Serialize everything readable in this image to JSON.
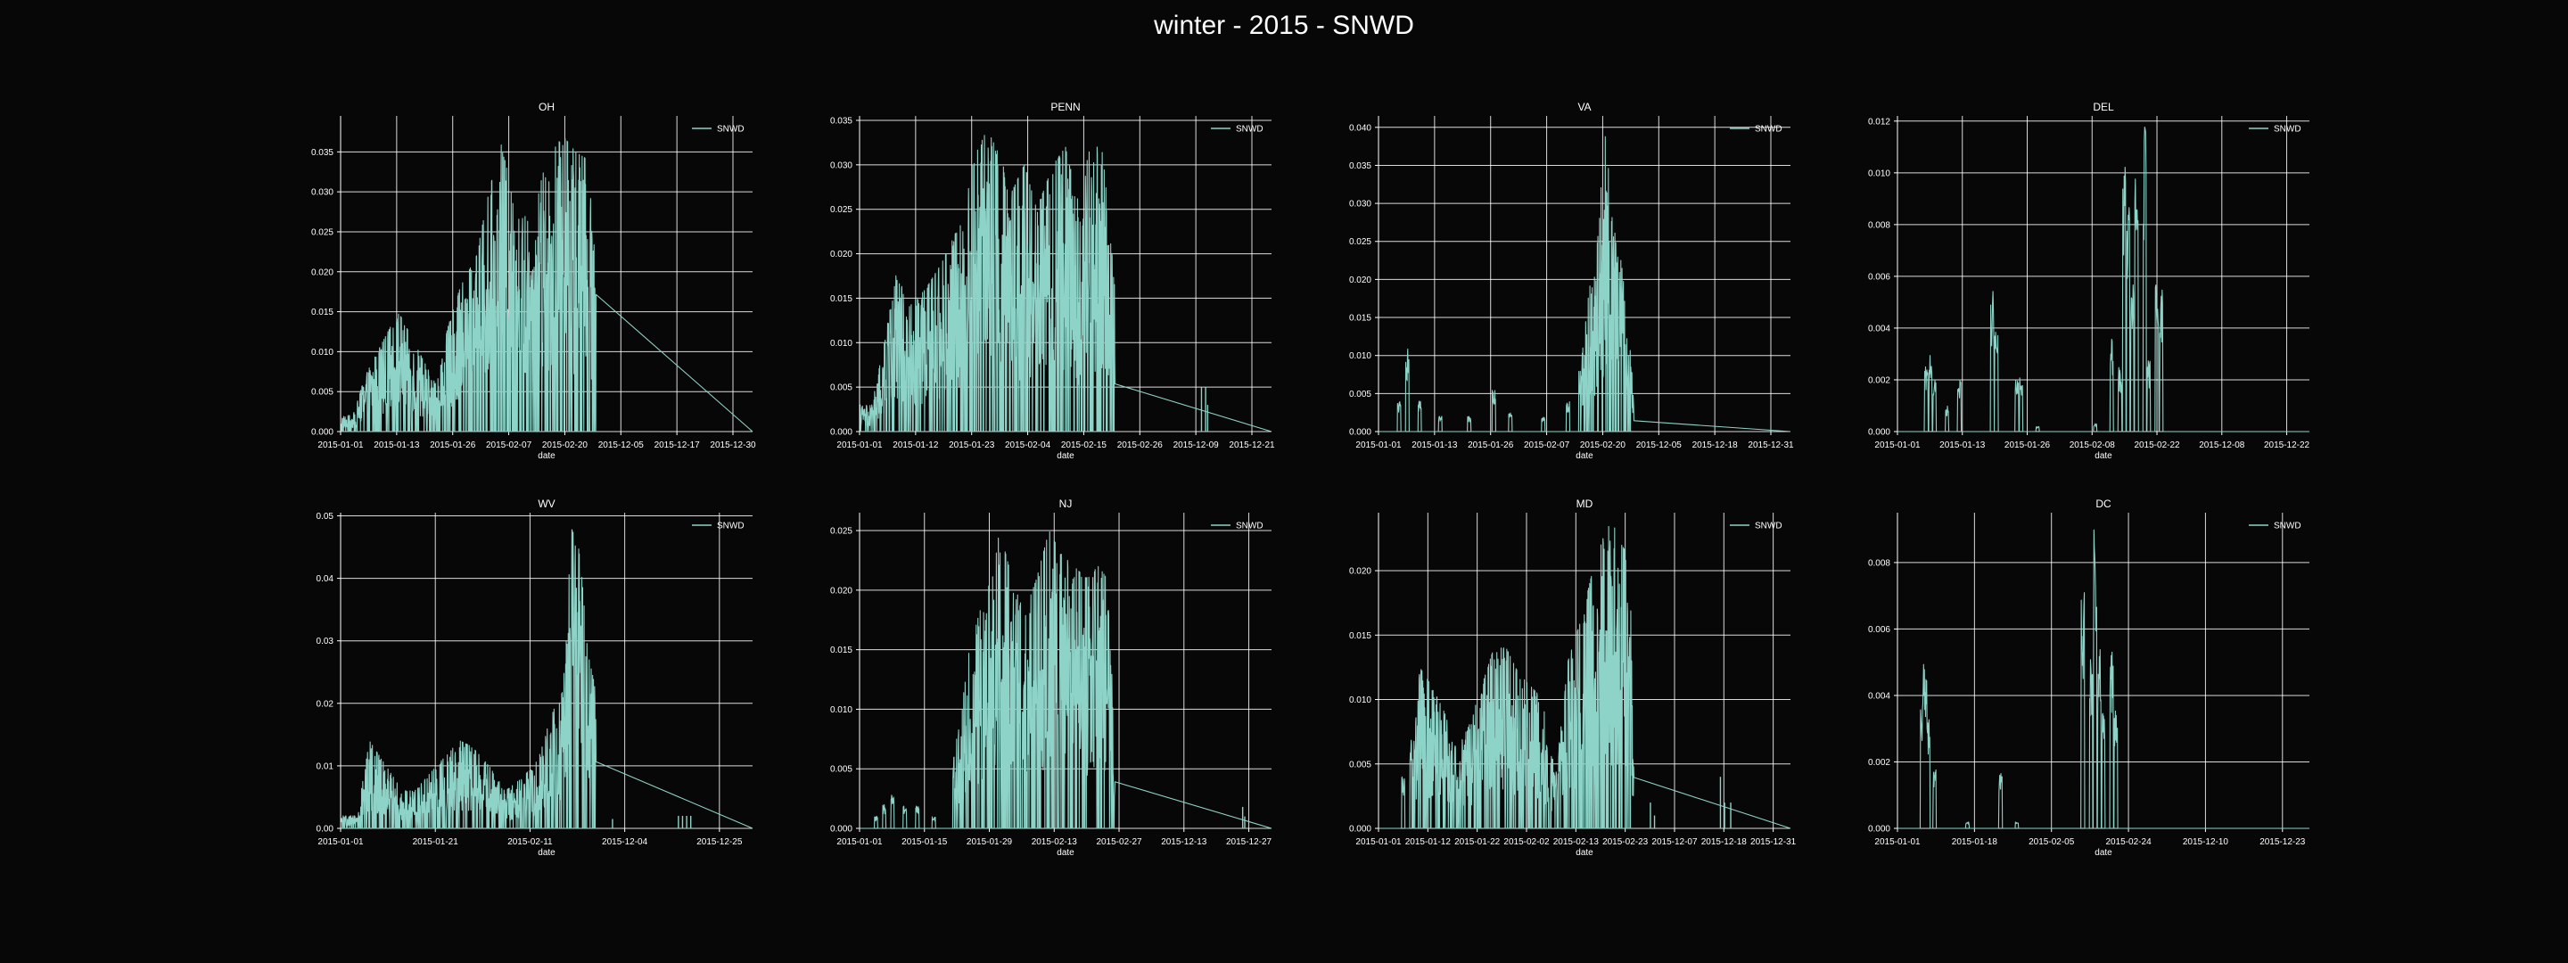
{
  "figure": {
    "title": "winter - 2015 - SNWD",
    "background": "#070707",
    "line_color": "#8dd3c7",
    "grid_color": "#ffffff"
  },
  "chart_data": [
    {
      "type": "line",
      "title": "OH",
      "xlabel": "date",
      "ylabel": "",
      "legend": "SNWD",
      "legend_position": "top-right",
      "grid": true,
      "xticks": [
        "2015-01-01",
        "2015-01-13",
        "2015-01-26",
        "2015-02-07",
        "2015-02-20",
        "2015-12-05",
        "2015-12-17",
        "2015-12-30"
      ],
      "yticks": [
        "0.000",
        "0.005",
        "0.010",
        "0.015",
        "0.020",
        "0.025",
        "0.030",
        "0.035"
      ],
      "ylim": [
        0,
        0.0395
      ],
      "n_points": 900,
      "data_end": 0.62,
      "series": [
        {
          "name": "SNWD",
          "envelope": [
            [
              0.03,
              0.002
            ],
            [
              0.06,
              0.007
            ],
            [
              0.1,
              0.011
            ],
            [
              0.14,
              0.015
            ],
            [
              0.17,
              0.012
            ],
            [
              0.2,
              0.009
            ],
            [
              0.23,
              0.006
            ],
            [
              0.26,
              0.013
            ],
            [
              0.29,
              0.018
            ],
            [
              0.33,
              0.022
            ],
            [
              0.36,
              0.03
            ],
            [
              0.39,
              0.036
            ],
            [
              0.42,
              0.029
            ],
            [
              0.46,
              0.026
            ],
            [
              0.5,
              0.034
            ],
            [
              0.54,
              0.037
            ],
            [
              0.57,
              0.035
            ],
            [
              0.6,
              0.034
            ],
            [
              0.62,
              0.02
            ]
          ]
        }
      ]
    },
    {
      "type": "line",
      "title": "PENN",
      "xlabel": "date",
      "ylabel": "",
      "legend": "SNWD",
      "legend_position": "top-right",
      "grid": true,
      "xticks": [
        "2015-01-01",
        "2015-01-12",
        "2015-01-23",
        "2015-02-04",
        "2015-02-15",
        "2015-02-26",
        "2015-12-09",
        "2015-12-21"
      ],
      "yticks": [
        "0.000",
        "0.005",
        "0.010",
        "0.015",
        "0.020",
        "0.025",
        "0.030",
        "0.035"
      ],
      "ylim": [
        0,
        0.0355
      ],
      "n_points": 900,
      "data_end": 0.62,
      "extra_spikes": [
        [
          0.83,
          0.005
        ],
        [
          0.84,
          0.005
        ],
        [
          0.845,
          0.003
        ]
      ],
      "series": [
        {
          "name": "SNWD",
          "envelope": [
            [
              0.03,
              0.003
            ],
            [
              0.06,
              0.01
            ],
            [
              0.09,
              0.018
            ],
            [
              0.12,
              0.014
            ],
            [
              0.16,
              0.016
            ],
            [
              0.2,
              0.019
            ],
            [
              0.24,
              0.023
            ],
            [
              0.28,
              0.031
            ],
            [
              0.31,
              0.034
            ],
            [
              0.34,
              0.031
            ],
            [
              0.37,
              0.027
            ],
            [
              0.4,
              0.03
            ],
            [
              0.43,
              0.025
            ],
            [
              0.47,
              0.03
            ],
            [
              0.5,
              0.032
            ],
            [
              0.53,
              0.026
            ],
            [
              0.56,
              0.032
            ],
            [
              0.59,
              0.032
            ],
            [
              0.62,
              0.016
            ]
          ]
        }
      ]
    },
    {
      "type": "line",
      "title": "VA",
      "xlabel": "date",
      "ylabel": "",
      "legend": "SNWD",
      "legend_position": "top-right",
      "grid": true,
      "xticks": [
        "2015-01-01",
        "2015-01-13",
        "2015-01-26",
        "2015-02-07",
        "2015-02-20",
        "2015-12-05",
        "2015-12-18",
        "2015-12-31"
      ],
      "yticks": [
        "0.000",
        "0.005",
        "0.010",
        "0.015",
        "0.020",
        "0.025",
        "0.030",
        "0.035",
        "0.040"
      ],
      "ylim": [
        0,
        0.0415
      ],
      "n_points": 900,
      "data_end": 0.62,
      "sparse_until": 0.49,
      "series": [
        {
          "name": "SNWD",
          "envelope": [
            [
              0.05,
              0.004
            ],
            [
              0.07,
              0.011
            ],
            [
              0.1,
              0.004
            ],
            [
              0.15,
              0.002
            ],
            [
              0.22,
              0.002
            ],
            [
              0.28,
              0.006
            ],
            [
              0.32,
              0.003
            ],
            [
              0.4,
              0.002
            ],
            [
              0.46,
              0.004
            ],
            [
              0.49,
              0.008
            ],
            [
              0.51,
              0.018
            ],
            [
              0.53,
              0.025
            ],
            [
              0.55,
              0.039
            ],
            [
              0.57,
              0.028
            ],
            [
              0.59,
              0.022
            ],
            [
              0.61,
              0.012
            ],
            [
              0.62,
              0.004
            ]
          ]
        }
      ]
    },
    {
      "type": "line",
      "title": "DEL",
      "xlabel": "date",
      "ylabel": "",
      "legend": "SNWD",
      "legend_position": "top-right",
      "grid": true,
      "xticks": [
        "2015-01-01",
        "2015-01-13",
        "2015-01-26",
        "2015-02-08",
        "2015-02-22",
        "2015-12-08",
        "2015-12-22"
      ],
      "yticks": [
        "0.000",
        "0.002",
        "0.004",
        "0.006",
        "0.008",
        "0.010",
        "0.012"
      ],
      "ylim": [
        0,
        0.0122
      ],
      "n_points": 600,
      "data_end": 0.65,
      "sparse_until": 1.0,
      "series": [
        {
          "name": "SNWD",
          "envelope": [
            [
              0.07,
              0.0025
            ],
            [
              0.08,
              0.0033
            ],
            [
              0.09,
              0.002
            ],
            [
              0.12,
              0.001
            ],
            [
              0.15,
              0.002
            ],
            [
              0.23,
              0.0055
            ],
            [
              0.24,
              0.004
            ],
            [
              0.29,
              0.002
            ],
            [
              0.3,
              0.0022
            ],
            [
              0.34,
              0.0002
            ],
            [
              0.48,
              0.0003
            ],
            [
              0.52,
              0.0036
            ],
            [
              0.54,
              0.0025
            ],
            [
              0.55,
              0.0105
            ],
            [
              0.56,
              0.0093
            ],
            [
              0.57,
              0.0058
            ],
            [
              0.58,
              0.0103
            ],
            [
              0.6,
              0.0119
            ],
            [
              0.61,
              0.0028
            ],
            [
              0.63,
              0.0064
            ],
            [
              0.64,
              0.0056
            ]
          ]
        }
      ]
    },
    {
      "type": "line",
      "title": "WV",
      "xlabel": "date",
      "ylabel": "",
      "legend": "SNWD",
      "legend_position": "top-right",
      "grid": true,
      "xticks": [
        "2015-01-01",
        "2015-01-21",
        "2015-02-11",
        "2015-12-04",
        "2015-12-25"
      ],
      "yticks": [
        "0.00",
        "0.01",
        "0.02",
        "0.03",
        "0.04",
        "0.05"
      ],
      "ylim": [
        0,
        0.0505
      ],
      "n_points": 900,
      "data_end": 0.62,
      "extra_spikes": [
        [
          0.66,
          0.0015
        ],
        [
          0.82,
          0.002
        ],
        [
          0.83,
          0.002
        ],
        [
          0.84,
          0.002
        ],
        [
          0.85,
          0.002
        ]
      ],
      "series": [
        {
          "name": "SNWD",
          "envelope": [
            [
              0.04,
              0.002
            ],
            [
              0.07,
              0.014
            ],
            [
              0.09,
              0.012
            ],
            [
              0.12,
              0.009
            ],
            [
              0.15,
              0.006
            ],
            [
              0.18,
              0.006
            ],
            [
              0.22,
              0.009
            ],
            [
              0.26,
              0.012
            ],
            [
              0.29,
              0.014
            ],
            [
              0.32,
              0.013
            ],
            [
              0.36,
              0.01
            ],
            [
              0.4,
              0.006
            ],
            [
              0.44,
              0.008
            ],
            [
              0.48,
              0.011
            ],
            [
              0.51,
              0.018
            ],
            [
              0.54,
              0.022
            ],
            [
              0.56,
              0.048
            ],
            [
              0.58,
              0.045
            ],
            [
              0.6,
              0.028
            ],
            [
              0.62,
              0.022
            ]
          ]
        }
      ]
    },
    {
      "type": "line",
      "title": "NJ",
      "xlabel": "date",
      "ylabel": "",
      "legend": "SNWD",
      "legend_position": "top-right",
      "grid": true,
      "xticks": [
        "2015-01-01",
        "2015-01-15",
        "2015-01-29",
        "2015-02-13",
        "2015-02-27",
        "2015-12-13",
        "2015-12-27"
      ],
      "yticks": [
        "0.000",
        "0.005",
        "0.010",
        "0.015",
        "0.020",
        "0.025"
      ],
      "ylim": [
        0,
        0.0265
      ],
      "n_points": 900,
      "data_end": 0.62,
      "sparse_until": 0.23,
      "extra_spikes": [
        [
          0.93,
          0.0018
        ],
        [
          0.935,
          0.001
        ]
      ],
      "series": [
        {
          "name": "SNWD",
          "envelope": [
            [
              0.04,
              0.001
            ],
            [
              0.06,
              0.002
            ],
            [
              0.08,
              0.003
            ],
            [
              0.11,
              0.002
            ],
            [
              0.14,
              0.002
            ],
            [
              0.18,
              0.001
            ],
            [
              0.23,
              0.006
            ],
            [
              0.26,
              0.014
            ],
            [
              0.29,
              0.018
            ],
            [
              0.32,
              0.021
            ],
            [
              0.34,
              0.025
            ],
            [
              0.37,
              0.021
            ],
            [
              0.4,
              0.018
            ],
            [
              0.43,
              0.021
            ],
            [
              0.46,
              0.025
            ],
            [
              0.49,
              0.023
            ],
            [
              0.52,
              0.022
            ],
            [
              0.55,
              0.021
            ],
            [
              0.58,
              0.022
            ],
            [
              0.6,
              0.021
            ],
            [
              0.62,
              0.008
            ]
          ]
        }
      ]
    },
    {
      "type": "line",
      "title": "MD",
      "xlabel": "date",
      "ylabel": "",
      "legend": "SNWD",
      "legend_position": "top-right",
      "grid": true,
      "xticks": [
        "2015-01-01",
        "2015-01-12",
        "2015-01-22",
        "2015-02-02",
        "2015-02-13",
        "2015-02-23",
        "2015-12-07",
        "2015-12-18",
        "2015-12-31"
      ],
      "yticks": [
        "0.000",
        "0.005",
        "0.010",
        "0.015",
        "0.020"
      ],
      "ylim": [
        0,
        0.0245
      ],
      "n_points": 900,
      "data_end": 0.62,
      "sparse_until": 0.08,
      "extra_spikes": [
        [
          0.66,
          0.002
        ],
        [
          0.67,
          0.001
        ],
        [
          0.83,
          0.004
        ],
        [
          0.84,
          0.002
        ],
        [
          0.855,
          0.002
        ]
      ],
      "series": [
        {
          "name": "SNWD",
          "envelope": [
            [
              0.06,
              0.004
            ],
            [
              0.08,
              0.007
            ],
            [
              0.1,
              0.0125
            ],
            [
              0.13,
              0.011
            ],
            [
              0.16,
              0.009
            ],
            [
              0.19,
              0.006
            ],
            [
              0.22,
              0.008
            ],
            [
              0.25,
              0.011
            ],
            [
              0.28,
              0.014
            ],
            [
              0.31,
              0.014
            ],
            [
              0.34,
              0.012
            ],
            [
              0.37,
              0.011
            ],
            [
              0.4,
              0.01
            ],
            [
              0.43,
              0.004
            ],
            [
              0.46,
              0.013
            ],
            [
              0.49,
              0.016
            ],
            [
              0.52,
              0.02
            ],
            [
              0.55,
              0.023
            ],
            [
              0.57,
              0.024
            ],
            [
              0.59,
              0.022
            ],
            [
              0.61,
              0.021
            ],
            [
              0.62,
              0.004
            ]
          ]
        }
      ]
    },
    {
      "type": "line",
      "title": "DC",
      "xlabel": "date",
      "ylabel": "",
      "legend": "SNWD",
      "legend_position": "top-right",
      "grid": true,
      "xticks": [
        "2015-01-01",
        "2015-01-18",
        "2015-02-05",
        "2015-02-24",
        "2015-12-10",
        "2015-12-23"
      ],
      "yticks": [
        "0.000",
        "0.002",
        "0.004",
        "0.006",
        "0.008"
      ],
      "ylim": [
        0,
        0.0095
      ],
      "n_points": 600,
      "data_end": 0.56,
      "sparse_until": 1.0,
      "series": [
        {
          "name": "SNWD",
          "envelope": [
            [
              0.06,
              0.0036
            ],
            [
              0.065,
              0.0054
            ],
            [
              0.07,
              0.0054
            ],
            [
              0.075,
              0.0036
            ],
            [
              0.09,
              0.0018
            ],
            [
              0.17,
              0.0002
            ],
            [
              0.25,
              0.0018
            ],
            [
              0.29,
              0.0002
            ],
            [
              0.45,
              0.0072
            ],
            [
              0.47,
              0.0054
            ],
            [
              0.48,
              0.009
            ],
            [
              0.49,
              0.0054
            ],
            [
              0.5,
              0.0036
            ],
            [
              0.52,
              0.0054
            ],
            [
              0.53,
              0.0036
            ]
          ]
        }
      ]
    }
  ]
}
